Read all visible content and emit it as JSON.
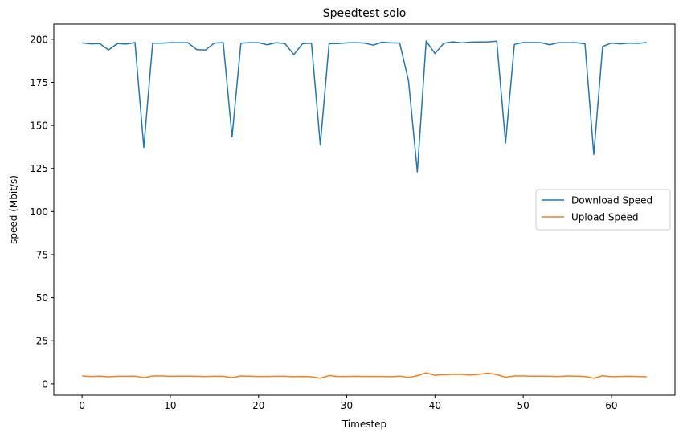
{
  "chart_data": {
    "type": "line",
    "title": "Speedtest solo",
    "xlabel": "Timestep",
    "ylabel": "speed (Mbit/s)",
    "xlim": [
      -3.2,
      67.2
    ],
    "ylim": [
      -6.6,
      208.8
    ],
    "xticks": [
      0,
      10,
      20,
      30,
      40,
      50,
      60
    ],
    "yticks": [
      0,
      25,
      50,
      75,
      100,
      125,
      150,
      175,
      200
    ],
    "grid": false,
    "legend_position": "center-right",
    "x": [
      0,
      1,
      2,
      3,
      4,
      5,
      6,
      7,
      8,
      9,
      10,
      11,
      12,
      13,
      14,
      15,
      16,
      17,
      18,
      19,
      20,
      21,
      22,
      23,
      24,
      25,
      26,
      27,
      28,
      29,
      30,
      31,
      32,
      33,
      34,
      35,
      36,
      37,
      38,
      39,
      40,
      41,
      42,
      43,
      44,
      45,
      46,
      47,
      48,
      49,
      50,
      51,
      52,
      53,
      54,
      55,
      56,
      57,
      58,
      59,
      60,
      61,
      62,
      63,
      64
    ],
    "series": [
      {
        "name": "Download Speed",
        "color": "#1f77b4",
        "values": [
          197.9,
          197.3,
          197.5,
          193.8,
          197.5,
          197.2,
          198.1,
          137.2,
          197.7,
          197.7,
          198.0,
          198.0,
          198.0,
          194.0,
          193.8,
          197.8,
          198.0,
          143.3,
          197.7,
          198.0,
          198.0,
          196.8,
          198.0,
          197.5,
          191.1,
          197.5,
          197.7,
          138.8,
          197.5,
          197.5,
          197.9,
          198.0,
          197.8,
          196.6,
          198.3,
          197.9,
          197.8,
          176.0,
          123.0,
          199.0,
          191.7,
          197.7,
          198.5,
          197.9,
          198.3,
          198.4,
          198.5,
          198.9,
          139.8,
          197.0,
          198.1,
          198.1,
          198.0,
          196.8,
          198.0,
          198.0,
          198.0,
          197.4,
          133.1,
          195.8,
          197.8,
          197.3,
          197.8,
          197.6,
          198.1
        ]
      },
      {
        "name": "Upload Speed",
        "color": "#ff7f0e",
        "values": [
          4.6,
          4.3,
          4.5,
          4.1,
          4.4,
          4.4,
          4.5,
          3.6,
          4.6,
          4.6,
          4.4,
          4.5,
          4.5,
          4.4,
          4.3,
          4.4,
          4.4,
          3.6,
          4.6,
          4.5,
          4.3,
          4.3,
          4.4,
          4.4,
          4.2,
          4.3,
          4.2,
          3.3,
          4.8,
          4.3,
          4.3,
          4.4,
          4.3,
          4.3,
          4.3,
          4.2,
          4.5,
          3.8,
          4.7,
          6.4,
          5.0,
          5.4,
          5.5,
          5.6,
          5.1,
          5.6,
          6.2,
          5.4,
          3.9,
          4.6,
          4.6,
          4.5,
          4.5,
          4.4,
          4.3,
          4.6,
          4.5,
          4.3,
          3.3,
          4.7,
          4.2,
          4.3,
          4.4,
          4.3,
          4.1
        ]
      }
    ]
  }
}
